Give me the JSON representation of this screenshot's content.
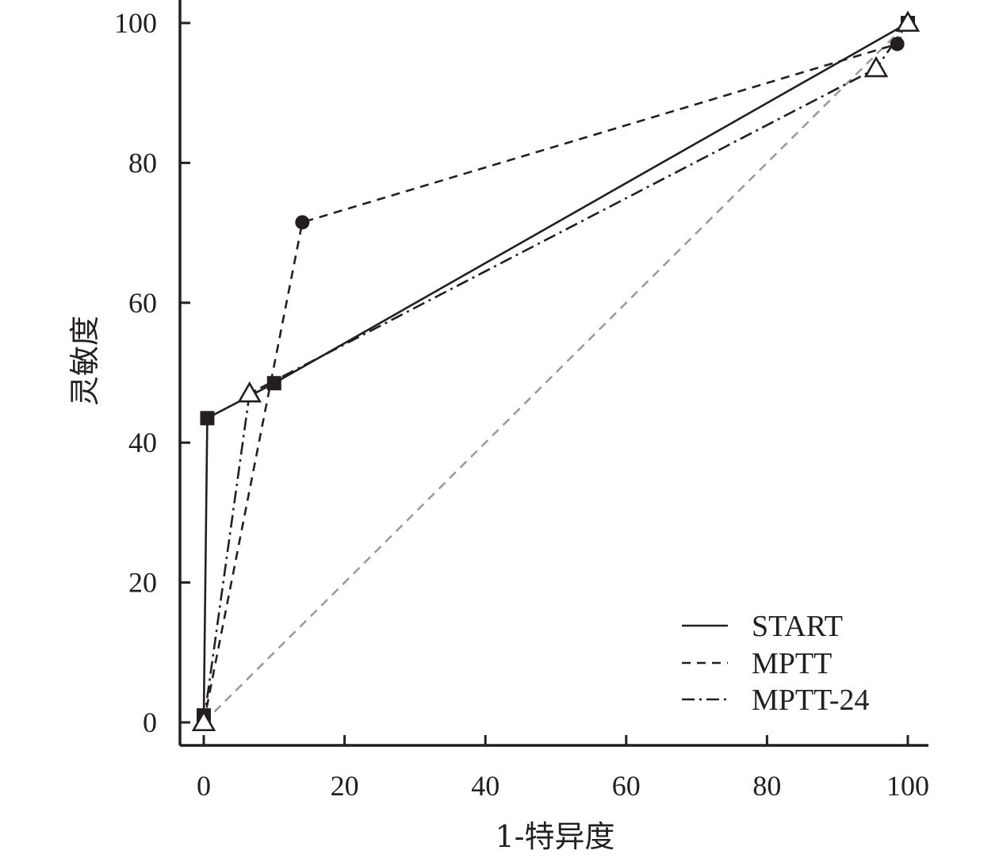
{
  "chart_data": {
    "type": "line",
    "xlabel": "1-特异度",
    "ylabel": "灵敏度",
    "xlim": [
      -3,
      103
    ],
    "ylim": [
      -3,
      102
    ],
    "xticks": [
      0,
      20,
      40,
      60,
      80,
      100
    ],
    "yticks": [
      0,
      20,
      40,
      60,
      80,
      100
    ],
    "xtick_labels": [
      "0",
      "20",
      "40",
      "60",
      "80",
      "100"
    ],
    "ytick_labels": [
      "0",
      "20",
      "40",
      "60",
      "80",
      "100"
    ],
    "grid": false,
    "legend_position": "bottom-right",
    "reference_line": {
      "x": [
        0,
        100
      ],
      "y": [
        0,
        100
      ],
      "style": "dashed",
      "color": "#999999"
    },
    "series": [
      {
        "name": "START",
        "style": "solid",
        "marker": "filled-square",
        "color": "#231f20",
        "x": [
          0,
          0.5,
          10,
          100
        ],
        "y": [
          1,
          43.5,
          48.5,
          100
        ]
      },
      {
        "name": "MPTT",
        "style": "dashed",
        "marker": "filled-circle",
        "color": "#231f20",
        "x": [
          0,
          14,
          98.5,
          100
        ],
        "y": [
          0,
          71.5,
          97,
          100
        ]
      },
      {
        "name": "MPTT-24",
        "style": "dashdot",
        "marker": "open-triangle",
        "color": "#231f20",
        "x": [
          0,
          6.5,
          95.5,
          100
        ],
        "y": [
          0,
          47,
          93.5,
          100
        ]
      }
    ]
  }
}
